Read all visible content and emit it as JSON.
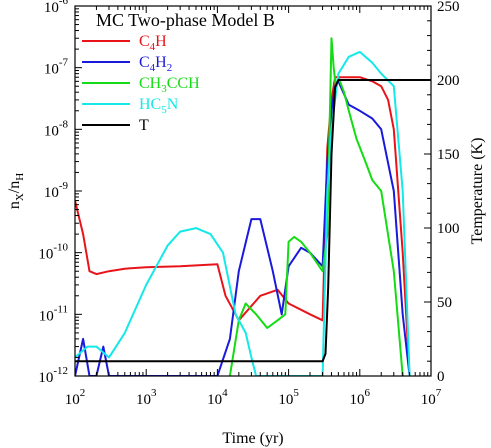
{
  "chart_data": {
    "type": "line",
    "title": "MC Two-phase Model B",
    "xlabel": "Time (yr)",
    "ylabel": "nX/nH",
    "ylabel_main": "n",
    "ylabel_sub1": "X",
    "ylabel_mid": "/n",
    "ylabel_sub2": "H",
    "y2label": "Temperature (K)",
    "xscale": "log",
    "yscale": "log",
    "xlim": [
      100,
      10000000
    ],
    "ylim": [
      1e-12,
      1e-06
    ],
    "y2lim": [
      0,
      250
    ],
    "x_ticks": [
      {
        "base": "10",
        "exp": "2"
      },
      {
        "base": "10",
        "exp": "3"
      },
      {
        "base": "10",
        "exp": "4"
      },
      {
        "base": "10",
        "exp": "5"
      },
      {
        "base": "10",
        "exp": "6"
      },
      {
        "base": "10",
        "exp": "7"
      }
    ],
    "y_ticks": [
      {
        "base": "10",
        "exp": "-12"
      },
      {
        "base": "10",
        "exp": "-11"
      },
      {
        "base": "10",
        "exp": "-10"
      },
      {
        "base": "10",
        "exp": "-9"
      },
      {
        "base": "10",
        "exp": "-8"
      },
      {
        "base": "10",
        "exp": "-7"
      },
      {
        "base": "10",
        "exp": "-6"
      }
    ],
    "y2_ticks": [
      "0",
      "50",
      "100",
      "150",
      "200",
      "250"
    ],
    "legend_position": "top-left",
    "series": [
      {
        "name": "C4H",
        "legend": [
          {
            "t": "C"
          },
          {
            "t": "4",
            "sub": true
          },
          {
            "t": "H"
          }
        ],
        "color": "#e8141a",
        "axis": "left",
        "x": [
          100,
          130,
          160,
          200,
          300,
          500,
          1000,
          3000,
          10000,
          13000,
          20000,
          40000,
          70000,
          100000,
          200000,
          300000,
          350000,
          400000,
          450000,
          500000,
          700000,
          1000000,
          1500000,
          2000000,
          2500000,
          3000000,
          4000000,
          5000000
        ],
        "y": [
          7e-10,
          2e-10,
          5e-11,
          4.5e-11,
          5e-11,
          5.5e-11,
          5.8e-11,
          6e-11,
          6.5e-11,
          2e-11,
          8e-12,
          2e-11,
          2.5e-11,
          1.5e-11,
          1e-11,
          8e-12,
          5e-09,
          3e-08,
          7e-08,
          7e-08,
          7e-08,
          7e-08,
          6e-08,
          5e-08,
          3e-08,
          1e-08,
          1e-10,
          1e-12
        ]
      },
      {
        "name": "C4H2",
        "legend": [
          {
            "t": "C"
          },
          {
            "t": "4",
            "sub": true
          },
          {
            "t": "H"
          },
          {
            "t": "2",
            "sub": true
          }
        ],
        "color": "#1a1adc",
        "axis": "left",
        "x": [
          100,
          130,
          160,
          200,
          250,
          300,
          400,
          600,
          1000,
          2000,
          5000,
          8000,
          10000,
          15000,
          20000,
          30000,
          40000,
          60000,
          80000,
          100000,
          150000,
          200000,
          300000,
          350000,
          400000,
          450000,
          500000,
          700000,
          1000000,
          1500000,
          2000000,
          3000000,
          4000000,
          5000000
        ],
        "y": [
          1e-12,
          4e-12,
          1e-12,
          1e-12,
          3e-12,
          1e-12,
          1e-12,
          1e-12,
          1e-12,
          1e-12,
          1e-12,
          1e-12,
          1e-12,
          4e-12,
          5e-11,
          3.5e-10,
          3.5e-10,
          5e-11,
          1e-11,
          6e-11,
          1.2e-10,
          1e-10,
          6e-11,
          3e-09,
          2e-08,
          5e-08,
          6e-08,
          2.5e-08,
          2e-08,
          1.5e-08,
          1e-08,
          1e-09,
          1e-11,
          1e-12
        ]
      },
      {
        "name": "CH3CCH",
        "legend": [
          {
            "t": "CH"
          },
          {
            "t": "3",
            "sub": true
          },
          {
            "t": "CCH"
          }
        ],
        "color": "#14dc14",
        "axis": "left",
        "x": [
          15000,
          20000,
          25000,
          35000,
          50000,
          70000,
          90000,
          100000,
          120000,
          150000,
          200000,
          300000,
          350000,
          400000,
          430000,
          460000,
          500000,
          600000,
          700000,
          900000,
          1200000,
          1500000,
          2000000,
          3000000,
          4000000
        ],
        "y": [
          1e-12,
          8e-12,
          1.5e-11,
          1e-11,
          6e-12,
          8e-12,
          1e-11,
          1.5e-10,
          1.8e-10,
          1.5e-10,
          1e-10,
          5e-11,
          2e-10,
          3e-07,
          1e-07,
          5e-08,
          7e-08,
          4e-08,
          2e-08,
          7e-09,
          3e-09,
          1.5e-09,
          1e-09,
          5e-11,
          1e-12
        ]
      },
      {
        "name": "HC5N",
        "legend": [
          {
            "t": "HC"
          },
          {
            "t": "5",
            "sub": true
          },
          {
            "t": "N"
          }
        ],
        "color": "#14e8e8",
        "axis": "left",
        "x": [
          100,
          150,
          200,
          300,
          500,
          1000,
          2000,
          3000,
          5000,
          8000,
          12000,
          18000,
          25000,
          30000,
          35000,
          40000,
          45000,
          300000,
          350000,
          400000,
          450000,
          500000,
          700000,
          1000000,
          1500000,
          2000000,
          3000000,
          4000000,
          5000000
        ],
        "y": [
          2e-12,
          3e-12,
          3e-12,
          2e-12,
          5e-12,
          3e-11,
          1.3e-10,
          2.2e-10,
          2.5e-10,
          2e-10,
          1e-10,
          1e-11,
          5e-12,
          2e-12,
          1e-12,
          1e-12,
          1e-12,
          1e-12,
          1e-09,
          1e-08,
          3e-08,
          8e-08,
          1.5e-07,
          1.8e-07,
          1.2e-07,
          8e-08,
          5e-08,
          1e-09,
          1e-12
        ]
      },
      {
        "name": "T",
        "legend": [
          {
            "t": "T"
          }
        ],
        "color": "#000000",
        "axis": "right",
        "x": [
          100,
          200000,
          300000,
          330000,
          360000,
          400000,
          450000,
          500000,
          10000000
        ],
        "y": [
          10,
          10,
          10,
          15,
          60,
          150,
          195,
          200,
          200
        ]
      }
    ]
  }
}
